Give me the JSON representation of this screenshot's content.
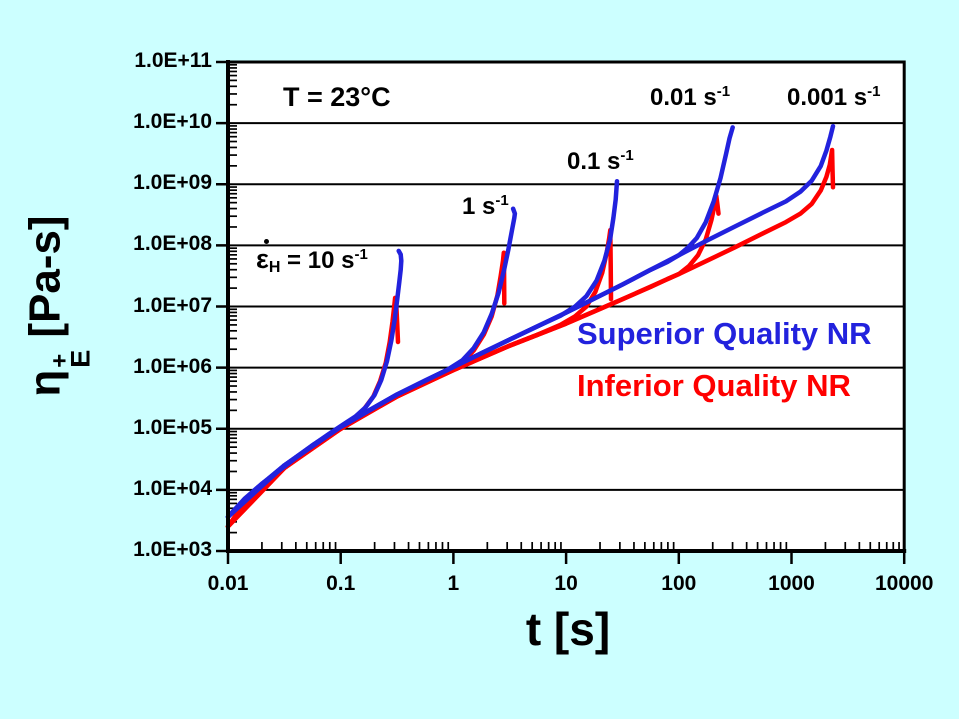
{
  "background_color": "#CCFFFF",
  "chart_data": {
    "type": "line",
    "x_scale": "log",
    "y_scale": "log",
    "xlim": [
      0.01,
      10000
    ],
    "ylim": [
      1000,
      100000000000
    ],
    "grid": "horizontal decade gridlines, black, on white plot area",
    "xlabel": "t [s]",
    "ylabel": {
      "symbol": "η",
      "sub": "E",
      "sup": "+",
      "units": "[Pa-s]"
    },
    "x_ticks": [
      {
        "label": "0.01",
        "log": -2
      },
      {
        "label": "0.1",
        "log": -1
      },
      {
        "label": "1",
        "log": 0
      },
      {
        "label": "10",
        "log": 1
      },
      {
        "label": "100",
        "log": 2
      },
      {
        "label": "1000",
        "log": 3
      },
      {
        "label": "10000",
        "log": 4
      }
    ],
    "y_ticks": [
      {
        "label": "1.0E+11",
        "log": 11
      },
      {
        "label": "1.0E+10",
        "log": 10
      },
      {
        "label": "1.0E+09",
        "log": 9
      },
      {
        "label": "1.0E+08",
        "log": 8
      },
      {
        "label": "1.0E+07",
        "log": 7
      },
      {
        "label": "1.0E+06",
        "log": 6
      },
      {
        "label": "1.0E+05",
        "log": 5
      },
      {
        "label": "1.0E+04",
        "log": 4
      },
      {
        "label": "1.0E+03",
        "log": 3
      }
    ],
    "annotations": {
      "temperature": "T = 23°C"
    },
    "rate_labels": [
      {
        "name": "10",
        "symbol": "ε",
        "sub": "H",
        "mid": " = 10 s",
        "sup": "-1"
      },
      {
        "name": "1",
        "text": "1 s",
        "sup": "-1"
      },
      {
        "name": "0.1",
        "text": "0.1 s",
        "sup": "-1"
      },
      {
        "name": "0.01",
        "text": "0.01 s",
        "sup": "-1"
      },
      {
        "name": "0.001",
        "text": "0.001 s",
        "sup": "-1"
      }
    ],
    "legend": {
      "superior": {
        "label": "Superior Quality NR",
        "color": "#2222DD"
      },
      "inferior": {
        "label": "Inferior Quality NR",
        "color": "#FF0000"
      }
    },
    "series": [
      {
        "name": "inferior-10s",
        "quality": "Inferior Quality NR",
        "rate_s-1": 10,
        "color": "#FF0000",
        "points_log10": [
          [
            -2.0,
            3.4
          ],
          [
            -1.85,
            3.8
          ],
          [
            -1.7,
            4.06
          ],
          [
            -1.55,
            4.29
          ],
          [
            -1.4,
            4.5
          ],
          [
            -1.25,
            4.7
          ],
          [
            -1.1,
            4.9
          ],
          [
            -0.97,
            5.06
          ],
          [
            -0.87,
            5.18
          ],
          [
            -0.79,
            5.33
          ],
          [
            -0.71,
            5.53
          ],
          [
            -0.65,
            5.78
          ],
          [
            -0.6,
            6.08
          ],
          [
            -0.565,
            6.42
          ],
          [
            -0.54,
            6.75
          ],
          [
            -0.525,
            7.0
          ],
          [
            -0.517,
            7.14
          ],
          [
            -0.507,
            7.02
          ],
          [
            -0.499,
            6.72
          ],
          [
            -0.492,
            6.42
          ]
        ]
      },
      {
        "name": "inferior-1s",
        "quality": "Inferior Quality NR",
        "rate_s-1": 1,
        "color": "#FF0000",
        "points_log10": [
          [
            -2.0,
            3.4
          ],
          [
            -1.75,
            3.97
          ],
          [
            -1.5,
            4.36
          ],
          [
            -1.25,
            4.7
          ],
          [
            -1.0,
            5.0
          ],
          [
            -0.75,
            5.27
          ],
          [
            -0.5,
            5.53
          ],
          [
            -0.25,
            5.75
          ],
          [
            -0.05,
            5.93
          ],
          [
            0.08,
            6.08
          ],
          [
            0.18,
            6.28
          ],
          [
            0.27,
            6.54
          ],
          [
            0.34,
            6.84
          ],
          [
            0.39,
            7.18
          ],
          [
            0.42,
            7.5
          ],
          [
            0.44,
            7.75
          ],
          [
            0.447,
            7.88
          ],
          [
            0.45,
            7.5
          ],
          [
            0.452,
            7.05
          ]
        ]
      },
      {
        "name": "inferior-0.1s",
        "quality": "Inferior Quality NR",
        "rate_s-1": 0.1,
        "color": "#FF0000",
        "points_log10": [
          [
            -2.0,
            3.4
          ],
          [
            -1.75,
            3.97
          ],
          [
            -1.5,
            4.36
          ],
          [
            -1.25,
            4.7
          ],
          [
            -1.0,
            5.0
          ],
          [
            -0.75,
            5.27
          ],
          [
            -0.5,
            5.53
          ],
          [
            -0.25,
            5.75
          ],
          [
            0.0,
            5.96
          ],
          [
            0.25,
            6.16
          ],
          [
            0.5,
            6.36
          ],
          [
            0.75,
            6.54
          ],
          [
            0.95,
            6.7
          ],
          [
            1.08,
            6.84
          ],
          [
            1.18,
            7.0
          ],
          [
            1.26,
            7.24
          ],
          [
            1.32,
            7.55
          ],
          [
            1.36,
            7.88
          ],
          [
            1.382,
            8.12
          ],
          [
            1.392,
            8.25
          ],
          [
            1.396,
            7.7
          ],
          [
            1.398,
            7.12
          ]
        ]
      },
      {
        "name": "inferior-0.01s",
        "quality": "Inferior Quality NR",
        "rate_s-1": 0.01,
        "color": "#FF0000",
        "points_log10": [
          [
            -2.0,
            3.4
          ],
          [
            -1.5,
            4.36
          ],
          [
            -1.0,
            5.0
          ],
          [
            -0.5,
            5.53
          ],
          [
            0.0,
            5.96
          ],
          [
            0.5,
            6.36
          ],
          [
            1.0,
            6.72
          ],
          [
            1.25,
            6.92
          ],
          [
            1.5,
            7.12
          ],
          [
            1.75,
            7.32
          ],
          [
            1.9,
            7.45
          ],
          [
            2.0,
            7.53
          ],
          [
            2.09,
            7.66
          ],
          [
            2.17,
            7.84
          ],
          [
            2.24,
            8.1
          ],
          [
            2.29,
            8.42
          ],
          [
            2.32,
            8.68
          ],
          [
            2.333,
            8.81
          ],
          [
            2.343,
            8.66
          ],
          [
            2.352,
            8.52
          ]
        ]
      },
      {
        "name": "inferior-0.001s",
        "quality": "Inferior Quality NR",
        "rate_s-1": 0.001,
        "color": "#FF0000",
        "points_log10": [
          [
            -2.0,
            3.4
          ],
          [
            -1.5,
            4.36
          ],
          [
            -1.0,
            5.0
          ],
          [
            -0.5,
            5.53
          ],
          [
            0.0,
            5.96
          ],
          [
            0.5,
            6.36
          ],
          [
            1.0,
            6.72
          ],
          [
            1.5,
            7.12
          ],
          [
            2.0,
            7.53
          ],
          [
            2.25,
            7.75
          ],
          [
            2.5,
            7.97
          ],
          [
            2.75,
            8.2
          ],
          [
            2.95,
            8.38
          ],
          [
            3.08,
            8.52
          ],
          [
            3.18,
            8.68
          ],
          [
            3.26,
            8.9
          ],
          [
            3.31,
            9.12
          ],
          [
            3.34,
            9.32
          ],
          [
            3.355,
            9.5
          ],
          [
            3.36,
            9.56
          ],
          [
            3.364,
            9.25
          ],
          [
            3.368,
            8.95
          ]
        ]
      },
      {
        "name": "superior-10s",
        "quality": "Superior Quality NR",
        "rate_s-1": 10,
        "color": "#2222DD",
        "points_log10": [
          [
            -2.0,
            3.56
          ],
          [
            -1.85,
            3.86
          ],
          [
            -1.7,
            4.1
          ],
          [
            -1.55,
            4.31
          ],
          [
            -1.4,
            4.52
          ],
          [
            -1.25,
            4.73
          ],
          [
            -1.1,
            4.92
          ],
          [
            -0.97,
            5.08
          ],
          [
            -0.87,
            5.2
          ],
          [
            -0.78,
            5.35
          ],
          [
            -0.7,
            5.55
          ],
          [
            -0.64,
            5.8
          ],
          [
            -0.59,
            6.1
          ],
          [
            -0.55,
            6.45
          ],
          [
            -0.52,
            6.8
          ],
          [
            -0.5,
            7.1
          ],
          [
            -0.48,
            7.4
          ],
          [
            -0.468,
            7.6
          ],
          [
            -0.462,
            7.75
          ],
          [
            -0.468,
            7.85
          ],
          [
            -0.485,
            7.91
          ]
        ]
      },
      {
        "name": "superior-1s",
        "quality": "Superior Quality NR",
        "rate_s-1": 1,
        "color": "#2222DD",
        "points_log10": [
          [
            -2.0,
            3.56
          ],
          [
            -1.75,
            4.02
          ],
          [
            -1.5,
            4.4
          ],
          [
            -1.25,
            4.73
          ],
          [
            -1.0,
            5.03
          ],
          [
            -0.75,
            5.3
          ],
          [
            -0.5,
            5.56
          ],
          [
            -0.25,
            5.79
          ],
          [
            -0.05,
            5.97
          ],
          [
            0.08,
            6.12
          ],
          [
            0.18,
            6.32
          ],
          [
            0.27,
            6.58
          ],
          [
            0.34,
            6.88
          ],
          [
            0.4,
            7.22
          ],
          [
            0.45,
            7.6
          ],
          [
            0.49,
            7.95
          ],
          [
            0.52,
            8.25
          ],
          [
            0.54,
            8.45
          ],
          [
            0.546,
            8.52
          ],
          [
            0.53,
            8.6
          ]
        ]
      },
      {
        "name": "superior-0.1s",
        "quality": "Superior Quality NR",
        "rate_s-1": 0.1,
        "color": "#2222DD",
        "points_log10": [
          [
            -2.0,
            3.56
          ],
          [
            -1.75,
            4.02
          ],
          [
            -1.5,
            4.4
          ],
          [
            -1.25,
            4.73
          ],
          [
            -1.0,
            5.03
          ],
          [
            -0.75,
            5.3
          ],
          [
            -0.5,
            5.56
          ],
          [
            -0.25,
            5.79
          ],
          [
            0.0,
            6.01
          ],
          [
            0.25,
            6.24
          ],
          [
            0.5,
            6.46
          ],
          [
            0.75,
            6.68
          ],
          [
            0.95,
            6.85
          ],
          [
            1.08,
            7.0
          ],
          [
            1.18,
            7.17
          ],
          [
            1.27,
            7.42
          ],
          [
            1.34,
            7.75
          ],
          [
            1.39,
            8.1
          ],
          [
            1.42,
            8.45
          ],
          [
            1.44,
            8.75
          ],
          [
            1.452,
            9.05
          ]
        ]
      },
      {
        "name": "superior-0.01s",
        "quality": "Superior Quality NR",
        "rate_s-1": 0.01,
        "color": "#2222DD",
        "points_log10": [
          [
            -2.0,
            3.56
          ],
          [
            -1.5,
            4.4
          ],
          [
            -1.0,
            5.03
          ],
          [
            -0.5,
            5.56
          ],
          [
            0.0,
            6.01
          ],
          [
            0.5,
            6.46
          ],
          [
            1.0,
            6.9
          ],
          [
            1.25,
            7.13
          ],
          [
            1.5,
            7.36
          ],
          [
            1.75,
            7.6
          ],
          [
            1.9,
            7.73
          ],
          [
            2.0,
            7.84
          ],
          [
            2.08,
            7.96
          ],
          [
            2.16,
            8.12
          ],
          [
            2.24,
            8.38
          ],
          [
            2.31,
            8.72
          ],
          [
            2.37,
            9.1
          ],
          [
            2.42,
            9.5
          ],
          [
            2.45,
            9.75
          ],
          [
            2.478,
            9.93
          ]
        ]
      },
      {
        "name": "superior-0.001s",
        "quality": "Superior Quality NR",
        "rate_s-1": 0.001,
        "color": "#2222DD",
        "points_log10": [
          [
            -2.0,
            3.56
          ],
          [
            -1.5,
            4.4
          ],
          [
            -1.0,
            5.03
          ],
          [
            -0.5,
            5.56
          ],
          [
            0.0,
            6.01
          ],
          [
            0.5,
            6.46
          ],
          [
            1.0,
            6.9
          ],
          [
            1.5,
            7.36
          ],
          [
            1.75,
            7.6
          ],
          [
            2.0,
            7.84
          ],
          [
            2.25,
            8.08
          ],
          [
            2.5,
            8.31
          ],
          [
            2.75,
            8.54
          ],
          [
            2.95,
            8.72
          ],
          [
            3.08,
            8.88
          ],
          [
            3.18,
            9.06
          ],
          [
            3.26,
            9.3
          ],
          [
            3.31,
            9.55
          ],
          [
            3.345,
            9.78
          ],
          [
            3.368,
            9.95
          ]
        ]
      }
    ]
  }
}
